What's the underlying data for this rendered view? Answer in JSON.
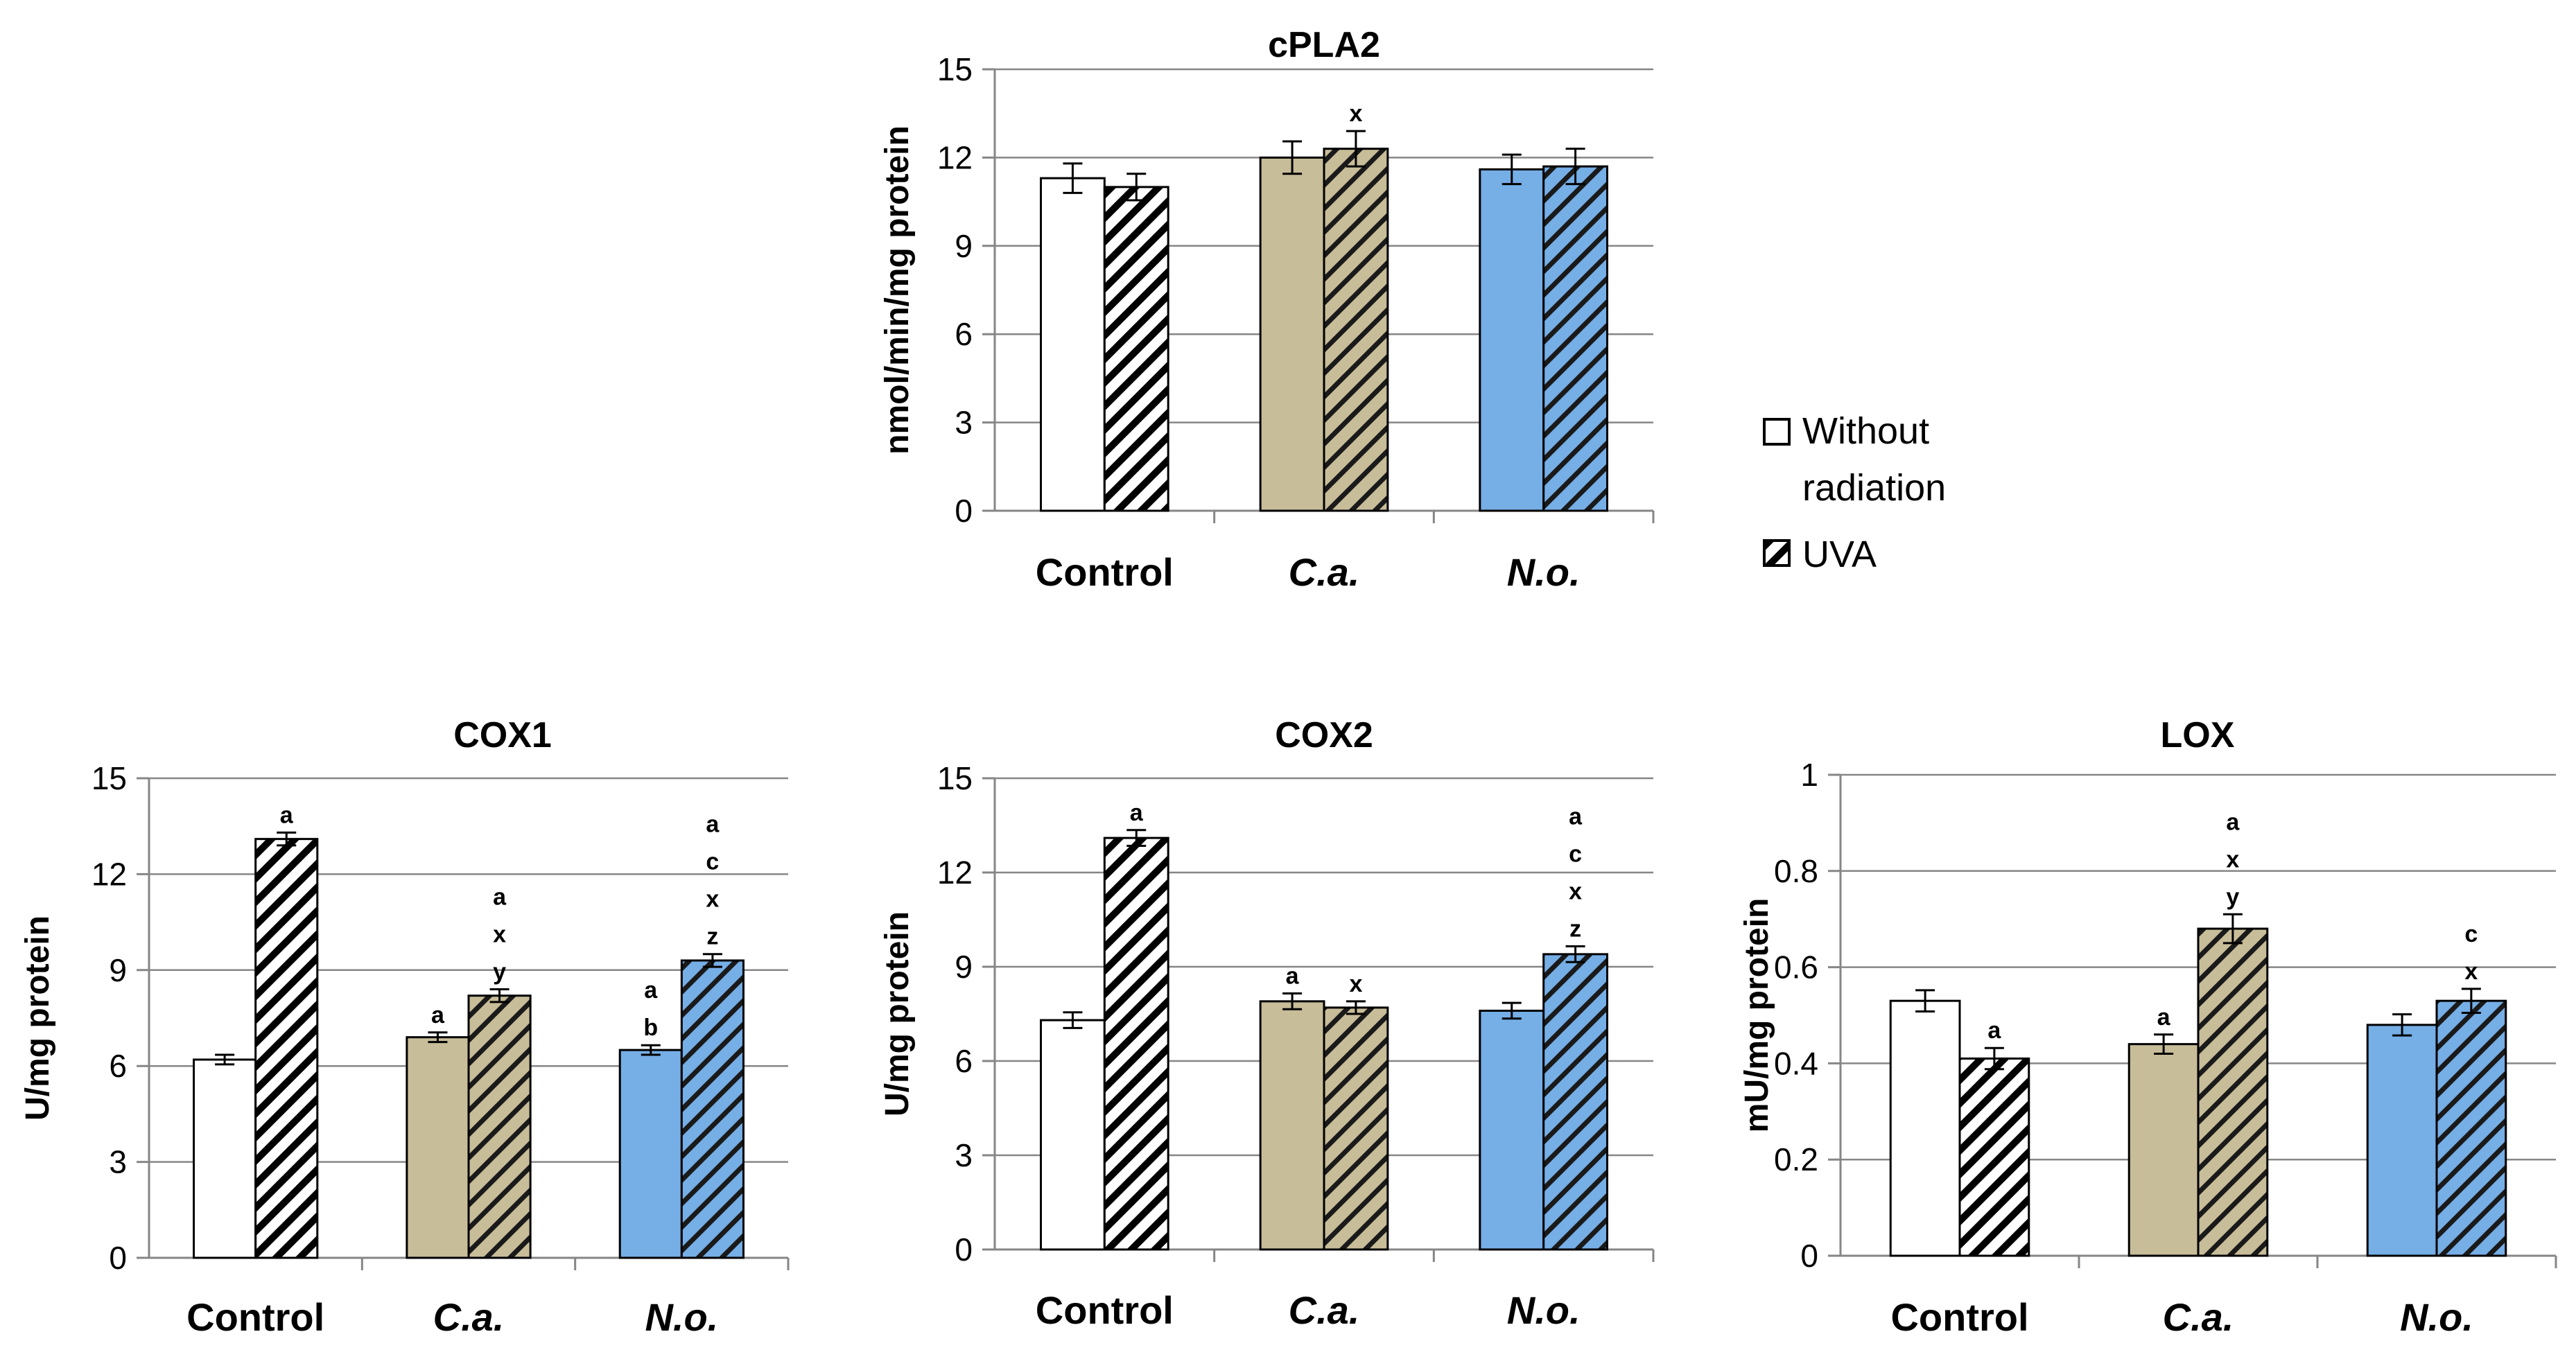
{
  "legend": {
    "entries": [
      {
        "lines": [
          "Without",
          "radiation"
        ],
        "pattern": "plain"
      },
      {
        "lines": [
          "UVA"
        ],
        "pattern": "hatched"
      }
    ]
  },
  "colors": {
    "control": "#ffffff",
    "ca": "#c8bd99",
    "no": "#76aee6",
    "axis": "#868686",
    "grid": "#868686",
    "bar_stroke": "#000000"
  },
  "chart_data": [
    {
      "id": "cpla2",
      "type": "bar",
      "title": "cPLA2",
      "ylabel": "nmol/min/mg protein",
      "ylim": [
        0,
        15
      ],
      "yticks": [
        0,
        3,
        6,
        9,
        12,
        15
      ],
      "yticklabels": [
        "0",
        "3",
        "6",
        "9",
        "12",
        "15"
      ],
      "categories": [
        "Control",
        "C.a.",
        "N.o."
      ],
      "series": [
        {
          "name": "Without radiation",
          "values": [
            11.3,
            12.0,
            11.6
          ],
          "errors": [
            0.5,
            0.55,
            0.5
          ],
          "labels": [
            [],
            [],
            []
          ]
        },
        {
          "name": "UVA",
          "values": [
            11.0,
            12.3,
            11.7
          ],
          "errors": [
            0.45,
            0.6,
            0.6
          ],
          "labels": [
            [],
            [
              "x"
            ],
            []
          ]
        }
      ]
    },
    {
      "id": "cox1",
      "type": "bar",
      "title": "COX1",
      "ylabel": "U/mg protein",
      "ylim": [
        0,
        15
      ],
      "yticks": [
        0,
        3,
        6,
        9,
        12,
        15
      ],
      "yticklabels": [
        "0",
        "3",
        "6",
        "9",
        "12",
        "15"
      ],
      "categories": [
        "Control",
        "C.a.",
        "N.o."
      ],
      "series": [
        {
          "name": "Without radiation",
          "values": [
            6.2,
            6.9,
            6.5
          ],
          "errors": [
            0.15,
            0.15,
            0.15
          ],
          "labels": [
            [],
            [
              "a"
            ],
            [
              "a",
              "b"
            ]
          ]
        },
        {
          "name": "UVA",
          "values": [
            13.1,
            8.2,
            9.3
          ],
          "errors": [
            0.2,
            0.2,
            0.2
          ],
          "labels": [
            [
              "a"
            ],
            [
              "a",
              "x",
              "y"
            ],
            [
              "a",
              "c",
              "x",
              "z"
            ]
          ]
        }
      ]
    },
    {
      "id": "cox2",
      "type": "bar",
      "title": "COX2",
      "ylabel": "U/mg protein",
      "ylim": [
        0,
        15
      ],
      "yticks": [
        0,
        3,
        6,
        9,
        12,
        15
      ],
      "yticklabels": [
        "0",
        "3",
        "6",
        "9",
        "12",
        "15"
      ],
      "categories": [
        "Control",
        "C.a.",
        "N.o."
      ],
      "series": [
        {
          "name": "Without radiation",
          "values": [
            7.3,
            7.9,
            7.6
          ],
          "errors": [
            0.25,
            0.25,
            0.25
          ],
          "labels": [
            [],
            [
              "a"
            ],
            []
          ]
        },
        {
          "name": "UVA",
          "values": [
            13.1,
            7.7,
            9.4
          ],
          "errors": [
            0.25,
            0.2,
            0.25
          ],
          "labels": [
            [
              "a"
            ],
            [
              "x"
            ],
            [
              "a",
              "c",
              "x",
              "z"
            ]
          ]
        }
      ]
    },
    {
      "id": "lox",
      "type": "bar",
      "title": "LOX",
      "ylabel": "mU/mg protein",
      "ylim": [
        0,
        1
      ],
      "yticks": [
        0,
        0.2,
        0.4,
        0.6,
        0.8,
        1
      ],
      "yticklabels": [
        "0",
        "0.2",
        "0.4",
        "0.6",
        "0.8",
        "1"
      ],
      "categories": [
        "Control",
        "C.a.",
        "N.o."
      ],
      "series": [
        {
          "name": "Without radiation",
          "values": [
            0.53,
            0.44,
            0.48
          ],
          "errors": [
            0.022,
            0.02,
            0.022
          ],
          "labels": [
            [],
            [
              "a"
            ],
            []
          ]
        },
        {
          "name": "UVA",
          "values": [
            0.41,
            0.68,
            0.53
          ],
          "errors": [
            0.022,
            0.03,
            0.025
          ],
          "labels": [
            [
              "a"
            ],
            [
              "a",
              "x",
              "y"
            ],
            [
              "c",
              "x"
            ]
          ]
        }
      ]
    }
  ]
}
